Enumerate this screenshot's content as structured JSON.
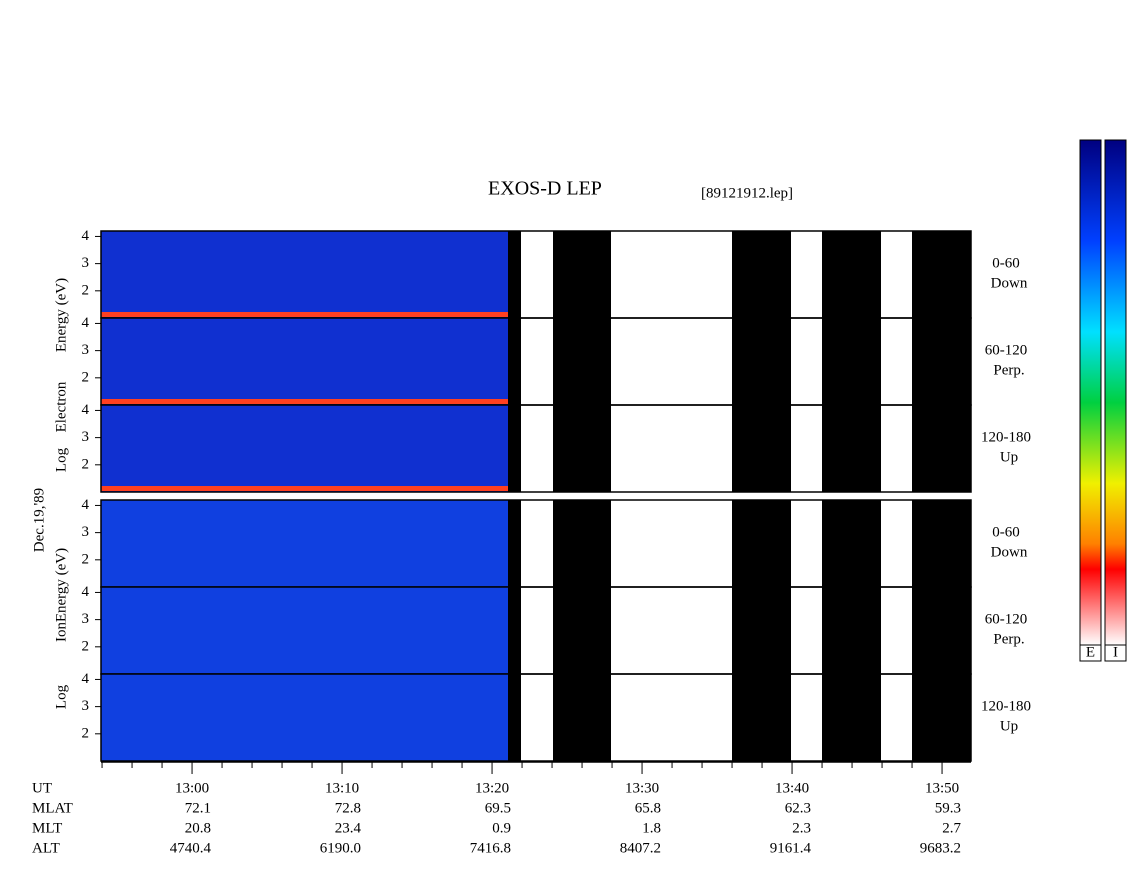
{
  "title": "EXOS-D LEP",
  "file": "[89121912.lep]",
  "date": "Dec.19,'89",
  "groups": [
    {
      "axis_words": [
        "Log",
        "Electron",
        "Energy (eV)"
      ],
      "panels": [
        {
          "angle": "0-60",
          "direction": "Down"
        },
        {
          "angle": "60-120",
          "direction": "Perp."
        },
        {
          "angle": "120-180",
          "direction": "Up"
        }
      ],
      "colorbar_label": "E"
    },
    {
      "axis_words": [
        "Log",
        "Ion",
        "Energy (eV)"
      ],
      "panels": [
        {
          "angle": "0-60",
          "direction": "Down"
        },
        {
          "angle": "60-120",
          "direction": "Perp."
        },
        {
          "angle": "120-180",
          "direction": "Up"
        }
      ],
      "colorbar_label": "I"
    }
  ],
  "energy_axis": {
    "ylim": [
      1,
      4.2
    ],
    "yticks": [
      2,
      3,
      4
    ]
  },
  "time_axis": {
    "xlim": [
      773.93,
      831.93
    ],
    "xticks": [
      {
        "value": 780,
        "label": "13:00"
      },
      {
        "value": 790,
        "label": "13:10"
      },
      {
        "value": 800,
        "label": "13:20"
      },
      {
        "value": 810,
        "label": "13:30"
      },
      {
        "value": 820,
        "label": "13:40"
      },
      {
        "value": 830,
        "label": "13:50"
      }
    ],
    "minor_xticks": [
      774,
      776,
      778,
      782,
      784,
      786,
      788,
      792,
      794,
      796,
      798,
      802,
      804,
      806,
      808,
      812,
      814,
      816,
      818,
      822,
      824,
      826,
      828
    ],
    "row_label": "UT"
  },
  "orbit_table": [
    {
      "label": "MLAT",
      "values": [
        "72.1",
        "72.8",
        "69.5",
        "65.8",
        "62.3",
        "59.3"
      ]
    },
    {
      "label": "MLT",
      "values": [
        "20.8",
        "23.4",
        "0.9",
        "1.8",
        "2.3",
        "2.7"
      ]
    },
    {
      "label": "ALT",
      "values": [
        "4740.4",
        "6190.0",
        "7416.8",
        "8407.2",
        "9161.4",
        "9683.2"
      ]
    }
  ]
}
